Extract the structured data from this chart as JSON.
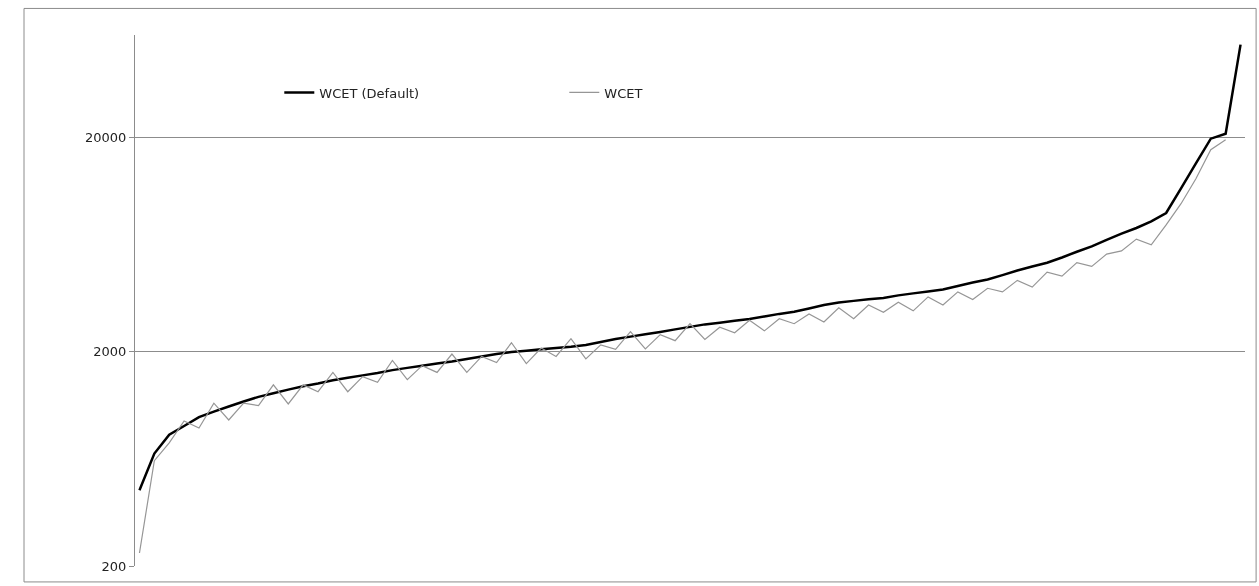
{
  "chart_data": {
    "type": "line",
    "categories": [
      null,
      null,
      null,
      null,
      null,
      null,
      null,
      null,
      null,
      null,
      null,
      null,
      null,
      null,
      null,
      null,
      null,
      null,
      null,
      null,
      null,
      null,
      null,
      null,
      null,
      null,
      null,
      null,
      null,
      null,
      null,
      null,
      null,
      null,
      null,
      null,
      null,
      null,
      null,
      null,
      null,
      null,
      null,
      null,
      null,
      null,
      null,
      null,
      null,
      null,
      null,
      null,
      null,
      null,
      null,
      null,
      null,
      null,
      null,
      null,
      null,
      null,
      null,
      null,
      null,
      null,
      null,
      null,
      null,
      null,
      null,
      null,
      null,
      null,
      null
    ],
    "series": [
      {
        "name": "WCET (Default)",
        "color": "#000000",
        "values": [
          451,
          669,
          820,
          900,
          990,
          1050,
          1110,
          1170,
          1230,
          1280,
          1330,
          1380,
          1420,
          1470,
          1510,
          1550,
          1590,
          1640,
          1680,
          1720,
          1760,
          1800,
          1850,
          1900,
          1950,
          1990,
          2020,
          2050,
          2080,
          2110,
          2150,
          2220,
          2290,
          2350,
          2410,
          2470,
          2540,
          2610,
          2680,
          2730,
          2790,
          2840,
          2920,
          3000,
          3070,
          3180,
          3300,
          3390,
          3450,
          3510,
          3560,
          3660,
          3740,
          3820,
          3900,
          4050,
          4200,
          4340,
          4550,
          4780,
          4990,
          5200,
          5500,
          5850,
          6200,
          6650,
          7100,
          7550,
          8100,
          8870,
          11560,
          15100,
          19700,
          20770,
          54100
        ]
      },
      {
        "name": "WCET",
        "color": "#969696",
        "values": [
          230,
          620,
          750,
          950,
          880,
          1150,
          960,
          1150,
          1120,
          1400,
          1140,
          1400,
          1300,
          1600,
          1300,
          1530,
          1440,
          1820,
          1480,
          1720,
          1600,
          1950,
          1600,
          1900,
          1780,
          2200,
          1760,
          2080,
          1900,
          2300,
          1850,
          2150,
          2050,
          2480,
          2060,
          2400,
          2250,
          2700,
          2280,
          2600,
          2450,
          2800,
          2500,
          2850,
          2700,
          3000,
          2750,
          3200,
          2850,
          3300,
          3050,
          3400,
          3100,
          3600,
          3300,
          3800,
          3500,
          3950,
          3800,
          4300,
          4000,
          4700,
          4500,
          5200,
          5000,
          5700,
          5900,
          6700,
          6300,
          7800,
          9800,
          12800,
          17500,
          19500,
          null
        ]
      }
    ],
    "log": true,
    "ylim": [
      200,
      60000
    ],
    "yticks": [
      200,
      2000,
      20000
    ],
    "grid": "y",
    "legend": "top left",
    "marker": "none",
    "line_style": "solid"
  }
}
